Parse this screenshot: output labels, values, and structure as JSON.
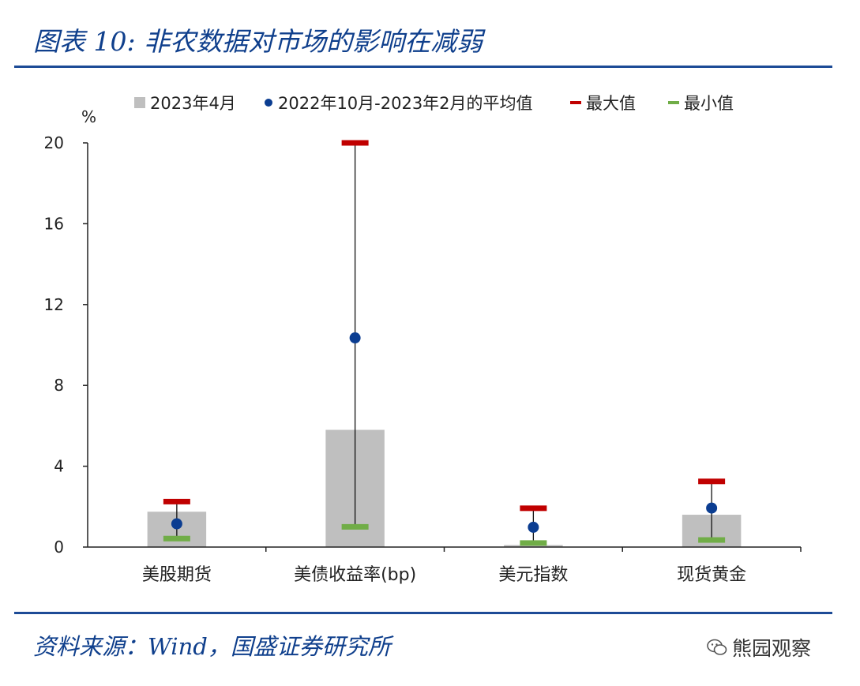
{
  "header": {
    "title": "图表 10:  非农数据对市场的影响在减弱"
  },
  "footer": {
    "source": "资料来源：Wind，国盛证券研究所",
    "watermark": "熊园观察"
  },
  "chart_data": {
    "type": "bar",
    "title": "",
    "ylabel": "%",
    "xlabel": "",
    "ylim": [
      0,
      20
    ],
    "yticks": [
      "0",
      "4",
      "8",
      "12",
      "16",
      "20"
    ],
    "legend_position": "top",
    "categories": [
      "美股期货",
      "美债收益率(bp)",
      "美元指数",
      "现货黄金"
    ],
    "series": [
      {
        "name": "2023年4月",
        "kind": "bar",
        "color": "#bfbfbf",
        "values": [
          1.75,
          5.8,
          0.1,
          1.6
        ]
      },
      {
        "name": "2022年10月-2023年2月的平均值",
        "kind": "dot",
        "color": "#0b3d91",
        "values": [
          1.15,
          10.35,
          0.98,
          1.93
        ]
      },
      {
        "name": "最大值",
        "kind": "dash",
        "color": "#c00000",
        "values": [
          2.25,
          20.0,
          1.92,
          3.25
        ]
      },
      {
        "name": "最小值",
        "kind": "dash",
        "color": "#70ad47",
        "values": [
          0.42,
          1.0,
          0.2,
          0.35
        ]
      }
    ]
  }
}
